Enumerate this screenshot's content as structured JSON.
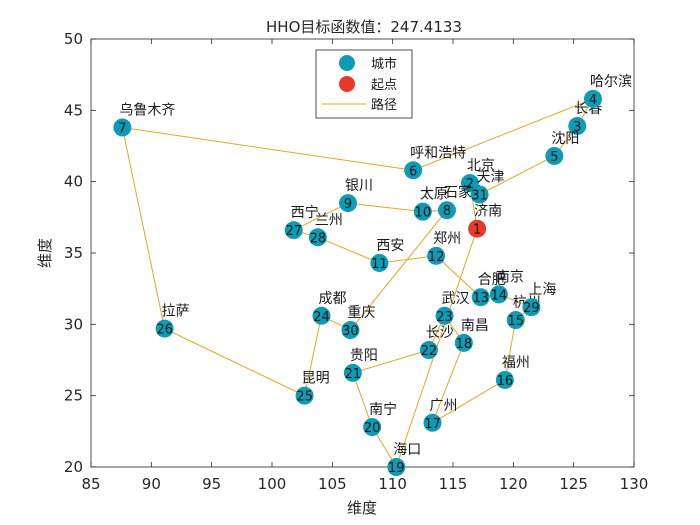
{
  "chart_data": {
    "type": "scatter",
    "title": "HHO目标函数值：247.4133",
    "xlabel": "维度",
    "ylabel": "维度",
    "xlim": [
      85,
      130
    ],
    "ylim": [
      20,
      50
    ],
    "xticks": [
      85,
      90,
      95,
      100,
      105,
      110,
      115,
      120,
      125,
      130
    ],
    "yticks": [
      20,
      25,
      30,
      35,
      40,
      45,
      50
    ],
    "legend": {
      "position": "top-center",
      "entries": [
        {
          "key": "city",
          "label": "城市"
        },
        {
          "key": "start",
          "label": "起点"
        },
        {
          "key": "path",
          "label": "路径"
        }
      ]
    },
    "colors": {
      "city": "#0d9bb5",
      "start": "#e8392d",
      "path": "#e2a820",
      "text": "#1a1a1a",
      "axis": "#262626"
    },
    "cities": [
      {
        "id": 1,
        "name": "济南",
        "x": 117.0,
        "y": 36.7,
        "start": true
      },
      {
        "id": 2,
        "name": "北京",
        "x": 116.4,
        "y": 39.9
      },
      {
        "id": 3,
        "name": "长春",
        "x": 125.3,
        "y": 43.9
      },
      {
        "id": 4,
        "name": "哈尔滨",
        "x": 126.6,
        "y": 45.8
      },
      {
        "id": 5,
        "name": "沈阳",
        "x": 123.4,
        "y": 41.8
      },
      {
        "id": 6,
        "name": "呼和浩特",
        "x": 111.7,
        "y": 40.8
      },
      {
        "id": 7,
        "name": "乌鲁木齐",
        "x": 87.6,
        "y": 43.8
      },
      {
        "id": 8,
        "name": "石家庄",
        "x": 114.5,
        "y": 38.0
      },
      {
        "id": 9,
        "name": "银川",
        "x": 106.3,
        "y": 38.5
      },
      {
        "id": 10,
        "name": "太原",
        "x": 112.5,
        "y": 37.9
      },
      {
        "id": 11,
        "name": "西安",
        "x": 108.9,
        "y": 34.3
      },
      {
        "id": 12,
        "name": "郑州",
        "x": 113.6,
        "y": 34.8
      },
      {
        "id": 13,
        "name": "合肥",
        "x": 117.3,
        "y": 31.9
      },
      {
        "id": 14,
        "name": "南京",
        "x": 118.8,
        "y": 32.1
      },
      {
        "id": 15,
        "name": "杭州",
        "x": 120.2,
        "y": 30.3
      },
      {
        "id": 16,
        "name": "福州",
        "x": 119.3,
        "y": 26.1
      },
      {
        "id": 17,
        "name": "广州",
        "x": 113.3,
        "y": 23.1
      },
      {
        "id": 18,
        "name": "南昌",
        "x": 115.9,
        "y": 28.7
      },
      {
        "id": 19,
        "name": "海口",
        "x": 110.3,
        "y": 20.0
      },
      {
        "id": 20,
        "name": "南宁",
        "x": 108.3,
        "y": 22.8
      },
      {
        "id": 21,
        "name": "贵阳",
        "x": 106.7,
        "y": 26.6
      },
      {
        "id": 22,
        "name": "长沙",
        "x": 113.0,
        "y": 28.2
      },
      {
        "id": 23,
        "name": "武汉",
        "x": 114.3,
        "y": 30.6
      },
      {
        "id": 24,
        "name": "成都",
        "x": 104.1,
        "y": 30.6
      },
      {
        "id": 25,
        "name": "昆明",
        "x": 102.7,
        "y": 25.0
      },
      {
        "id": 26,
        "name": "拉萨",
        "x": 91.1,
        "y": 29.7
      },
      {
        "id": 27,
        "name": "西宁",
        "x": 101.8,
        "y": 36.6
      },
      {
        "id": 28,
        "name": "兰州",
        "x": 103.8,
        "y": 36.1
      },
      {
        "id": 29,
        "name": "上海",
        "x": 121.5,
        "y": 31.2
      },
      {
        "id": 30,
        "name": "重庆",
        "x": 106.5,
        "y": 29.6
      },
      {
        "id": 31,
        "name": "天津",
        "x": 117.2,
        "y": 39.1
      }
    ],
    "route": [
      1,
      2,
      31,
      5,
      3,
      4,
      6,
      7,
      26,
      25,
      24,
      30,
      8,
      10,
      9,
      27,
      28,
      11,
      12,
      13,
      14,
      29,
      15,
      16,
      17,
      18,
      23,
      22,
      21,
      20,
      19,
      1
    ]
  }
}
